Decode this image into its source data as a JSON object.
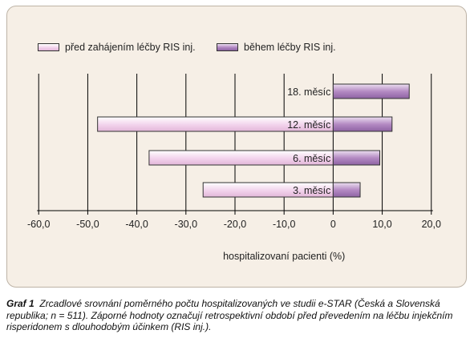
{
  "chart_data": {
    "type": "bar",
    "orientation": "horizontal",
    "categories": [
      "18. měsíc",
      "12. měsíc",
      "6. měsíc",
      "3. měsíc"
    ],
    "series": [
      {
        "name": "před zahájením léčby RIS inj.",
        "values": [
          0,
          -48.0,
          -37.5,
          -26.5
        ],
        "color": "#f2d3ec"
      },
      {
        "name": "během léčby RIS inj.",
        "values": [
          15.5,
          12.0,
          9.5,
          5.5
        ],
        "color": "#b58bc4"
      }
    ],
    "xlim": [
      -62,
      22
    ],
    "xticks": [
      -60,
      -50,
      -40,
      -30,
      -20,
      -10,
      0,
      10,
      20
    ],
    "xtick_labels": [
      "-60,0",
      "-50,0",
      "-40,0",
      "-30,0",
      "-20,0",
      "-10,0",
      "0",
      "10,0",
      "20,0"
    ],
    "xlabel": "hospitalizovaní pacienti (%)",
    "grid": "vertical",
    "legend_position": "top"
  },
  "caption": {
    "label": "Graf 1",
    "text": "Zrcadlové srovnání poměrného počtu hospitalizovaných ve studii e-STAR (Česká a Slovenská republika; n = 511). Záporné hodnoty označují retrospektivní období před převedením na léčbu injekčním risperidonem s dlouhodobým účinkem (RIS inj.)."
  }
}
